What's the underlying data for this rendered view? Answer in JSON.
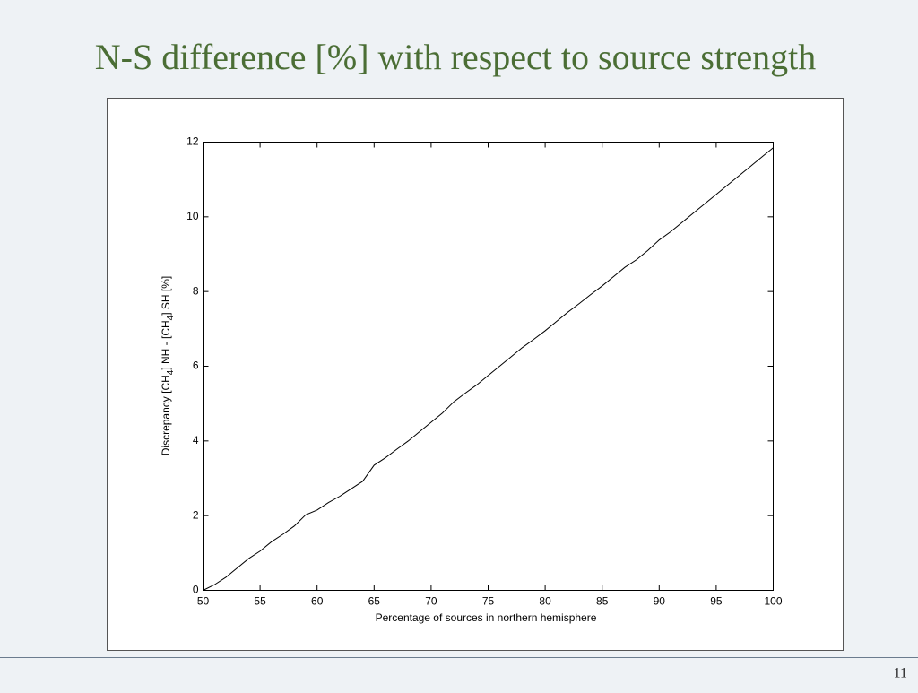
{
  "page_number": "11",
  "chart_data": {
    "type": "line",
    "title": "N-S difference [%] with respect to source strength",
    "xlabel": "Percentage of sources in northern hemisphere",
    "ylabel": [
      "Discrepancy [CH",
      "4",
      "] NH - [CH",
      "4",
      "] SH [%]"
    ],
    "x": [
      50,
      51,
      52,
      53,
      54,
      55,
      56,
      57,
      58,
      59,
      60,
      61,
      62,
      63,
      64,
      65,
      66,
      67,
      68,
      69,
      70,
      71,
      72,
      73,
      74,
      75,
      76,
      77,
      78,
      79,
      80,
      81,
      82,
      83,
      84,
      85,
      86,
      87,
      88,
      89,
      90,
      91,
      92,
      93,
      94,
      95,
      96,
      97,
      98,
      99,
      100
    ],
    "values": [
      0,
      0.15,
      0.35,
      0.6,
      0.85,
      1.05,
      1.3,
      1.5,
      1.72,
      2.02,
      2.15,
      2.35,
      2.52,
      2.72,
      2.92,
      3.35,
      3.55,
      3.78,
      4.0,
      4.25,
      4.5,
      4.75,
      5.05,
      5.28,
      5.5,
      5.75,
      6.0,
      6.25,
      6.5,
      6.72,
      6.95,
      7.2,
      7.45,
      7.68,
      7.92,
      8.15,
      8.4,
      8.65,
      8.85,
      9.1,
      9.38,
      9.6,
      9.85,
      10.1,
      10.35,
      10.6,
      10.85,
      11.1,
      11.35,
      11.6,
      11.85
    ],
    "color": "#000000",
    "xlim": [
      50,
      100
    ],
    "ylim": [
      0,
      12
    ],
    "xticks": [
      50,
      55,
      60,
      65,
      70,
      75,
      80,
      85,
      90,
      95,
      100
    ],
    "yticks": [
      0,
      2,
      4,
      6,
      8,
      10,
      12
    ],
    "grid": false
  }
}
